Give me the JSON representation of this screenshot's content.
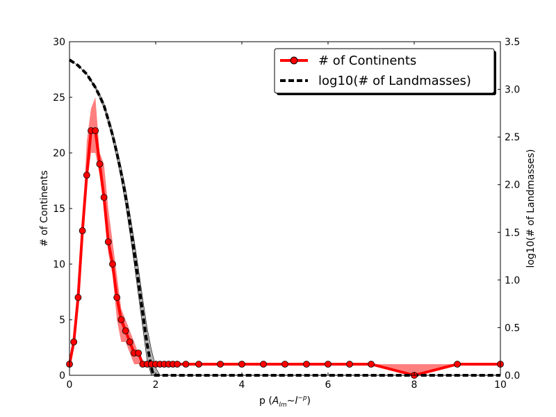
{
  "chart_data": {
    "type": "line",
    "xlabel_prefix": "p (",
    "xlabel_math": "A",
    "xlabel_math_sub": "lm",
    "xlabel_math_rel": "∼l",
    "xlabel_math_sup": "−p",
    "xlabel_suffix": ")",
    "ylabel_left": "# of Continents",
    "ylabel_right": "log10(# of Landmasses)",
    "xlim": [
      0,
      10
    ],
    "ylim_left": [
      0,
      30
    ],
    "ylim_right": [
      0,
      3.5
    ],
    "x_ticks": [
      "0",
      "2",
      "4",
      "6",
      "8",
      "10"
    ],
    "y_left_ticks": [
      "0",
      "5",
      "10",
      "15",
      "20",
      "25",
      "30"
    ],
    "y_right_ticks": [
      "0.0",
      "0.5",
      "1.0",
      "1.5",
      "2.0",
      "2.5",
      "3.0",
      "3.5"
    ],
    "legend_position": "top-right",
    "series": [
      {
        "name": "# of Continents",
        "axis": "left",
        "color": "#ff0000",
        "style": "solid-with-circle-markers",
        "x": [
          0,
          0.1,
          0.2,
          0.3,
          0.4,
          0.5,
          0.6,
          0.7,
          0.8,
          0.9,
          1.0,
          1.1,
          1.2,
          1.3,
          1.4,
          1.5,
          1.6,
          1.7,
          1.8,
          1.9,
          2.0,
          2.1,
          2.2,
          2.3,
          2.4,
          2.5,
          2.7,
          3.0,
          3.5,
          4.0,
          4.5,
          5.0,
          5.5,
          6.0,
          6.5,
          7.0,
          8.0,
          9.0,
          10.0
        ],
        "y": [
          1,
          3,
          7,
          13,
          18,
          22,
          22,
          19,
          16,
          12,
          10,
          7,
          5,
          4,
          3,
          2,
          2,
          1,
          1,
          1,
          1,
          1,
          1,
          1,
          1,
          1,
          1,
          1,
          1,
          1,
          1,
          1,
          1,
          1,
          1,
          1,
          0,
          1,
          1
        ],
        "band_upper": [
          1,
          3,
          7,
          13,
          21,
          24,
          25,
          20,
          19,
          15,
          12,
          9,
          6,
          5,
          4,
          3,
          2,
          1,
          1,
          1,
          1,
          1,
          1,
          1,
          1,
          1,
          1,
          1,
          1,
          1,
          1,
          1,
          1,
          1,
          1,
          1,
          1,
          1,
          1
        ],
        "band_lower": [
          1,
          3,
          7,
          13,
          17,
          20,
          20,
          18,
          15,
          11,
          9,
          5,
          3,
          3,
          2,
          1,
          1,
          1,
          1,
          1,
          1,
          1,
          1,
          1,
          1,
          1,
          1,
          1,
          1,
          1,
          1,
          1,
          1,
          1,
          1,
          1,
          0,
          1,
          1
        ]
      },
      {
        "name": "log10(# of Landmasses)",
        "axis": "right",
        "color": "#000000",
        "style": "dashed",
        "band_color": "#808080",
        "x": [
          0,
          0.2,
          0.4,
          0.6,
          0.7,
          0.8,
          0.9,
          1.0,
          1.1,
          1.2,
          1.3,
          1.4,
          1.5,
          1.6,
          1.7,
          1.8,
          1.9,
          1.95,
          2.0,
          2.1,
          3.0,
          4.0,
          5.0,
          6.0,
          7.0,
          8.0,
          9.0,
          10.0
        ],
        "y": [
          3.31,
          3.25,
          3.16,
          3.02,
          2.93,
          2.83,
          2.68,
          2.52,
          2.33,
          2.12,
          1.88,
          1.6,
          1.3,
          0.98,
          0.65,
          0.33,
          0.08,
          0.0,
          0.0,
          0.0,
          0.0,
          0.0,
          0.0,
          0.0,
          0.0,
          0.0,
          0.0,
          0.0
        ],
        "band_upper": [
          3.31,
          3.25,
          3.16,
          3.03,
          2.95,
          2.85,
          2.71,
          2.56,
          2.38,
          2.18,
          1.96,
          1.7,
          1.42,
          1.12,
          0.8,
          0.5,
          0.27,
          0.18,
          0.08,
          0.0,
          0.0,
          0.0,
          0.0,
          0.0,
          0.0,
          0.0,
          0.0,
          0.0
        ],
        "band_lower": [
          3.31,
          3.25,
          3.16,
          3.01,
          2.91,
          2.81,
          2.65,
          2.48,
          2.28,
          2.06,
          1.8,
          1.5,
          1.18,
          0.84,
          0.5,
          0.16,
          0.0,
          0.0,
          0.0,
          0.0,
          0.0,
          0.0,
          0.0,
          0.0,
          0.0,
          0.0,
          0.0,
          0.0
        ]
      }
    ]
  }
}
